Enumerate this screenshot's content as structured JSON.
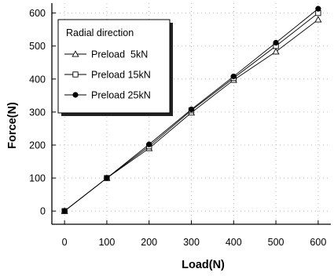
{
  "chart_data": {
    "type": "line",
    "title": "",
    "xlabel": "Load(N)",
    "ylabel": "Force(N)",
    "xlim": [
      -30,
      630
    ],
    "ylim": [
      -40,
      630
    ],
    "xticks": [
      0,
      100,
      200,
      300,
      400,
      500,
      600
    ],
    "yticks": [
      0,
      100,
      200,
      300,
      400,
      500,
      600
    ],
    "grid": "dotted",
    "legend": {
      "title": "Radial direction",
      "placement": "top-left"
    },
    "x": [
      0,
      100,
      200,
      300,
      400,
      500,
      600
    ],
    "series": [
      {
        "name": "Preload  5kN",
        "marker": "triangle-open",
        "values": [
          0,
          100,
          190,
          298,
          397,
          483,
          580
        ]
      },
      {
        "name": "Preload 15kN",
        "marker": "square-open",
        "values": [
          0,
          100,
          196,
          305,
          403,
          500,
          600
        ]
      },
      {
        "name": "Preload 25kN",
        "marker": "circle-filled",
        "values": [
          0,
          100,
          202,
          308,
          408,
          510,
          613
        ]
      }
    ]
  }
}
